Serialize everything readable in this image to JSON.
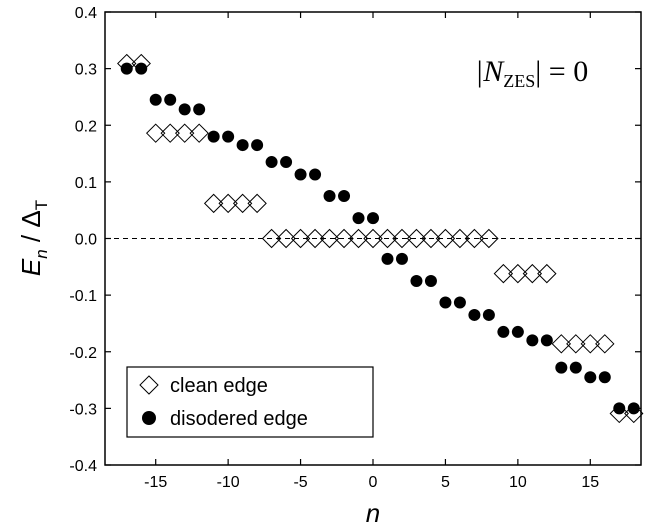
{
  "chart_data": {
    "type": "scatter",
    "title": "",
    "xlabel": "n",
    "ylabel_main": "E",
    "ylabel_sub": "n",
    "ylabel_div": " / Δ",
    "ylabel_sub2": "T",
    "xlim": [
      -18.5,
      18.5
    ],
    "ylim": [
      -0.4,
      0.4
    ],
    "xticks": [
      -15,
      -10,
      -5,
      0,
      5,
      10,
      15
    ],
    "xtick_labels": [
      "-15",
      "-10",
      "-5",
      "0",
      "5",
      "10",
      "15"
    ],
    "yticks": [
      -0.4,
      -0.3,
      -0.2,
      -0.1,
      0.0,
      0.1,
      0.2,
      0.3,
      0.4
    ],
    "ytick_labels": [
      "-0.4",
      "-0.3",
      "-0.2",
      "-0.1",
      "0.0",
      "0.1",
      "0.2",
      "0.3",
      "0.4"
    ],
    "reference_line_y": 0,
    "annotation": {
      "prefix": "|N",
      "sub": "ZES",
      "suffix": "| = 0"
    },
    "legend_position": "bottom-left",
    "series": [
      {
        "name": "clean edge",
        "marker": "diamond-open",
        "points": [
          [
            -17,
            0.309
          ],
          [
            -16,
            0.309
          ],
          [
            -15,
            0.186
          ],
          [
            -14,
            0.186
          ],
          [
            -13,
            0.186
          ],
          [
            -12,
            0.186
          ],
          [
            -11,
            0.062
          ],
          [
            -10,
            0.062
          ],
          [
            -9,
            0.062
          ],
          [
            -8,
            0.062
          ],
          [
            -7,
            0.0
          ],
          [
            -6,
            0.0
          ],
          [
            -5,
            0.0
          ],
          [
            -4,
            0.0
          ],
          [
            -3,
            0.0
          ],
          [
            -2,
            0.0
          ],
          [
            -1,
            0.0
          ],
          [
            0,
            0.0
          ],
          [
            1,
            0.0
          ],
          [
            2,
            0.0
          ],
          [
            3,
            0.0
          ],
          [
            4,
            0.0
          ],
          [
            5,
            0.0
          ],
          [
            6,
            0.0
          ],
          [
            7,
            0.0
          ],
          [
            8,
            0.0
          ],
          [
            9,
            -0.062
          ],
          [
            10,
            -0.062
          ],
          [
            11,
            -0.062
          ],
          [
            12,
            -0.062
          ],
          [
            13,
            -0.186
          ],
          [
            14,
            -0.186
          ],
          [
            15,
            -0.186
          ],
          [
            16,
            -0.186
          ],
          [
            17,
            -0.309
          ],
          [
            18,
            -0.309
          ]
        ]
      },
      {
        "name": "disodered edge",
        "marker": "circle-filled",
        "points": [
          [
            -17,
            0.3
          ],
          [
            -16,
            0.3
          ],
          [
            -15,
            0.245
          ],
          [
            -14,
            0.245
          ],
          [
            -13,
            0.228
          ],
          [
            -12,
            0.228
          ],
          [
            -11,
            0.18
          ],
          [
            -10,
            0.18
          ],
          [
            -9,
            0.165
          ],
          [
            -8,
            0.165
          ],
          [
            -7,
            0.135
          ],
          [
            -6,
            0.135
          ],
          [
            -5,
            0.113
          ],
          [
            -4,
            0.113
          ],
          [
            -3,
            0.075
          ],
          [
            -2,
            0.075
          ],
          [
            -1,
            0.036
          ],
          [
            0,
            0.036
          ],
          [
            1,
            -0.036
          ],
          [
            2,
            -0.036
          ],
          [
            3,
            -0.075
          ],
          [
            4,
            -0.075
          ],
          [
            5,
            -0.113
          ],
          [
            6,
            -0.113
          ],
          [
            7,
            -0.135
          ],
          [
            8,
            -0.135
          ],
          [
            9,
            -0.165
          ],
          [
            10,
            -0.165
          ],
          [
            11,
            -0.18
          ],
          [
            12,
            -0.18
          ],
          [
            13,
            -0.228
          ],
          [
            14,
            -0.228
          ],
          [
            15,
            -0.245
          ],
          [
            16,
            -0.245
          ],
          [
            17,
            -0.3
          ],
          [
            18,
            -0.3
          ]
        ]
      }
    ]
  }
}
